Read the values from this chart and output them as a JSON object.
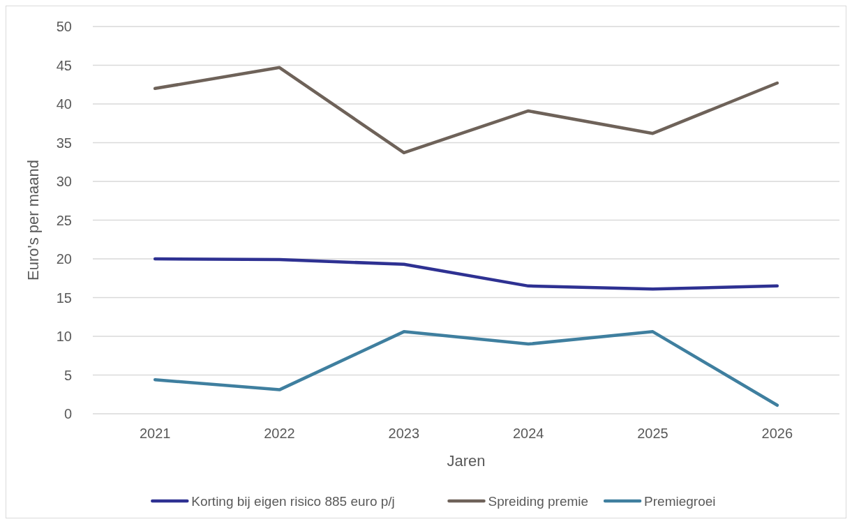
{
  "chart_data": {
    "type": "line",
    "xlabel": "Jaren",
    "ylabel": "Euro's per maand",
    "categories": [
      "2021",
      "2022",
      "2023",
      "2024",
      "2025",
      "2026"
    ],
    "series": [
      {
        "name": "Korting bij eigen risico 885 euro p/j",
        "color": "#2e3192",
        "values": [
          20,
          19.9,
          19.3,
          16.5,
          16.1,
          16.5
        ]
      },
      {
        "name": "Spreiding premie",
        "color": "#6e6259",
        "values": [
          42,
          44.7,
          33.7,
          39.1,
          36.2,
          42.7
        ]
      },
      {
        "name": "Premiegroei",
        "color": "#3f7f9f",
        "values": [
          4.4,
          3.1,
          10.6,
          9,
          10.6,
          1.1
        ]
      }
    ],
    "ylim": [
      0,
      50
    ],
    "yticks": [
      0,
      5,
      10,
      15,
      20,
      25,
      30,
      35,
      40,
      45,
      50
    ],
    "grid": "y",
    "legend": "bottom",
    "marker": "none",
    "line_style": "solid"
  }
}
